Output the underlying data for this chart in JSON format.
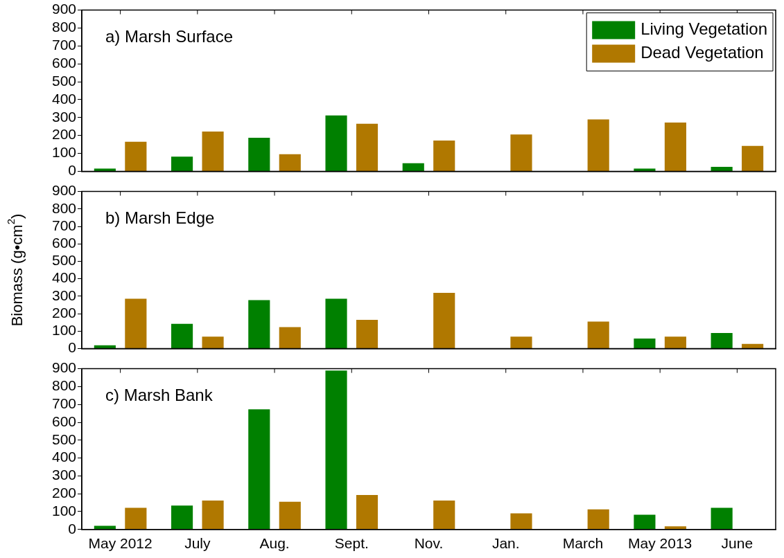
{
  "chart_data": [
    {
      "type": "bar",
      "title": "a) Marsh Surface",
      "categories": [
        null,
        null,
        null,
        null,
        null,
        null,
        null,
        null,
        null
      ],
      "series": [
        {
          "name": "Living Vegetation",
          "color": "#008000",
          "values": [
            15,
            82,
            187,
            312,
            45,
            0,
            0,
            15,
            25
          ]
        },
        {
          "name": "Dead Vegetation",
          "color": "#b07800",
          "values": [
            165,
            222,
            95,
            265,
            172,
            205,
            290,
            272,
            142
          ]
        }
      ],
      "ylim": [
        0,
        900
      ],
      "yticks": [
        0,
        100,
        200,
        300,
        400,
        500,
        600,
        700,
        800,
        900
      ],
      "grid": false,
      "legend": "top right",
      "tick_labels": "y"
    },
    {
      "type": "bar",
      "title": "b) Marsh Edge",
      "ylabel": "Biomass (g•cm$^{2}$)",
      "categories": [
        null,
        null,
        null,
        null,
        null,
        null,
        null,
        null,
        null
      ],
      "series": [
        {
          "color": "#008000",
          "values": [
            18,
            141,
            277,
            285,
            0,
            0,
            0,
            57,
            89
          ]
        },
        {
          "color": "#b07800",
          "values": [
            285,
            68,
            123,
            164,
            319,
            68,
            154,
            68,
            26
          ]
        }
      ],
      "ylim": [
        0,
        900
      ],
      "yticks": [
        0,
        100,
        200,
        300,
        400,
        500,
        600,
        700,
        800,
        900
      ],
      "grid": false,
      "legend": false,
      "tick_labels": "y"
    },
    {
      "type": "bar",
      "title": "c) Marsh Bank",
      "categories": [
        "May 2012",
        "July",
        "Aug.",
        "Sept.",
        "Nov.",
        "Jan.",
        "March",
        "May 2013",
        "June"
      ],
      "series": [
        {
          "color": "#008000",
          "values": [
            21,
            134,
            673,
            890,
            0,
            0,
            0,
            83,
            121
          ]
        },
        {
          "color": "#b07800",
          "values": [
            121,
            162,
            155,
            193,
            162,
            90,
            113,
            18,
            0
          ]
        }
      ],
      "ylim": [
        0,
        900
      ],
      "yticks": [
        0,
        100,
        200,
        300,
        400,
        500,
        600,
        700,
        800,
        900
      ],
      "grid": false,
      "legend": false
    }
  ]
}
